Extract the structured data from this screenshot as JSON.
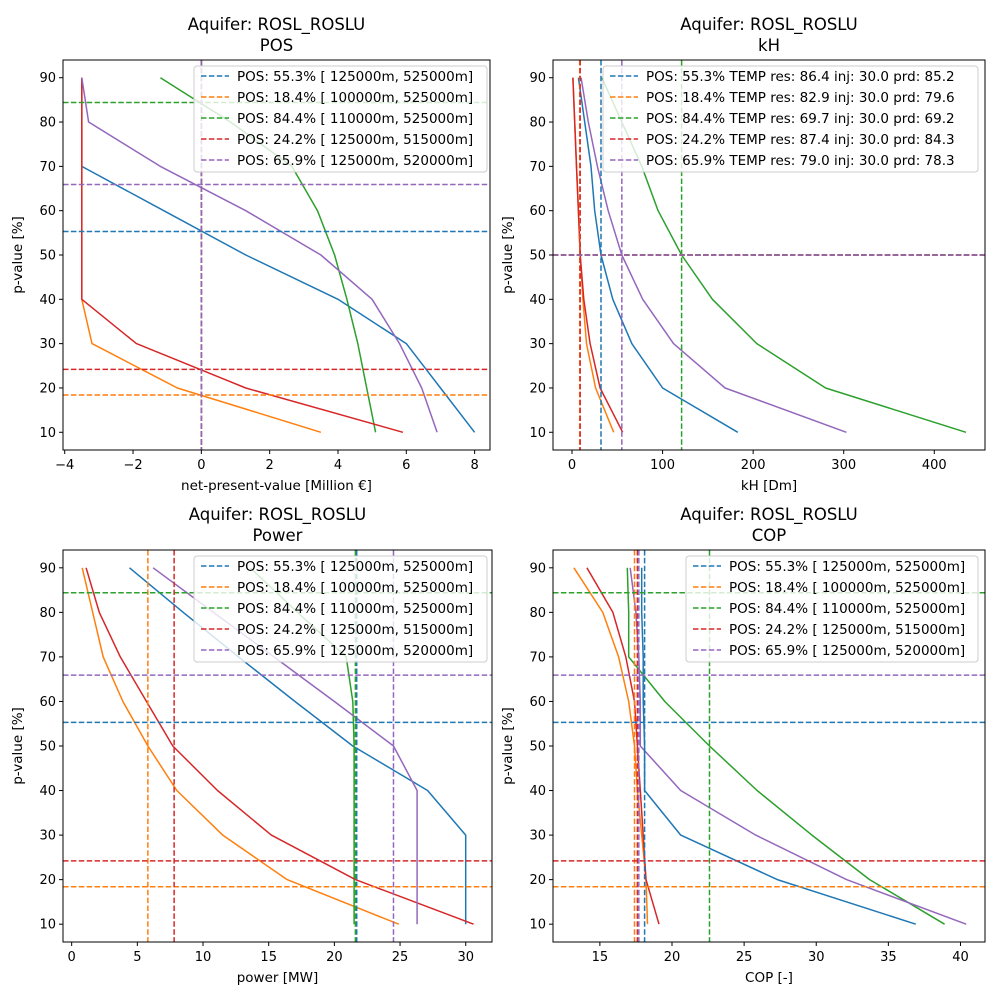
{
  "colors": {
    "blue": "#1f77b4",
    "orange": "#ff7f0e",
    "green": "#2ca02c",
    "red": "#d62728",
    "purple": "#9467bd"
  },
  "chart_data": [
    {
      "type": "line",
      "title": [
        "Aquifer: ROSL_ROSLU",
        "POS"
      ],
      "xlabel": "net-present-value [Million €]",
      "ylabel": "p-value [%]",
      "xlim": [
        -4.05,
        8.45
      ],
      "ylim": [
        6,
        94
      ],
      "xticks": [
        -4,
        -2,
        0,
        2,
        4,
        6,
        8
      ],
      "yticks": [
        10,
        20,
        30,
        40,
        50,
        60,
        70,
        80,
        90
      ],
      "grid": false,
      "legend_position": "top-right",
      "p_values": [
        10,
        20,
        30,
        40,
        50,
        60,
        70,
        80,
        90
      ],
      "series": [
        {
          "name": "POS: 55.3% [ 125000m, 525000m]",
          "color": "#1f77b4",
          "x": [
            8.0,
            7.0,
            6.0,
            4.0,
            1.3,
            -1.1,
            -3.5,
            -3.5,
            -3.5
          ],
          "hline": 55.3,
          "vline": 0
        },
        {
          "name": "POS: 18.4% [ 100000m, 525000m]",
          "color": "#ff7f0e",
          "x": [
            3.5,
            -0.7,
            -3.2,
            -3.5,
            -3.5,
            -3.5,
            -3.5,
            -3.5,
            -3.5
          ],
          "hline": 18.4,
          "vline": 0
        },
        {
          "name": "POS: 84.4% [ 110000m, 525000m]",
          "color": "#2ca02c",
          "x": [
            5.1,
            4.84,
            4.58,
            4.26,
            3.9,
            3.4,
            2.65,
            0.85,
            -1.2
          ],
          "hline": 84.4,
          "vline": 0
        },
        {
          "name": "POS: 24.2% [ 125000m, 515000m]",
          "color": "#d62728",
          "x": [
            5.9,
            1.3,
            -1.9,
            -3.5,
            -3.5,
            -3.5,
            -3.5,
            -3.5,
            -3.5
          ],
          "hline": 24.2,
          "vline": 0
        },
        {
          "name": "POS: 65.9% [ 125000m, 520000m]",
          "color": "#9467bd",
          "x": [
            6.9,
            6.45,
            5.8,
            5.0,
            3.5,
            1.3,
            -1.2,
            -3.3,
            -3.5
          ],
          "hline": 65.9,
          "vline": 0
        }
      ]
    },
    {
      "type": "line",
      "title": [
        "Aquifer: ROSL_ROSLU",
        "kH"
      ],
      "xlabel": "kH [Dm]",
      "ylabel": "p-value [%]",
      "xlim": [
        -21,
        456
      ],
      "ylim": [
        6,
        94
      ],
      "xticks": [
        0,
        100,
        200,
        300,
        400
      ],
      "yticks": [
        10,
        20,
        30,
        40,
        50,
        60,
        70,
        80,
        90
      ],
      "grid": false,
      "legend_position": "top-right",
      "p_values": [
        10,
        20,
        30,
        40,
        50,
        60,
        70,
        80,
        90
      ],
      "series": [
        {
          "name": "POS: 55.3%  TEMP res: 86.4 inj: 30.0 prd: 85.2",
          "color": "#1f77b4",
          "x": [
            183,
            100,
            66,
            45,
            32,
            25,
            21,
            14,
            7
          ],
          "hline": 50,
          "vline": 32
        },
        {
          "name": "POS: 18.4%  TEMP res: 82.9 inj: 30.0 prd: 79.6",
          "color": "#ff7f0e",
          "x": [
            46,
            26,
            16,
            12,
            9,
            7,
            5,
            3,
            1
          ],
          "hline": 50,
          "vline": 8.5
        },
        {
          "name": "POS: 84.4%  TEMP res: 69.7 inj: 30.0 prd: 69.2",
          "color": "#2ca02c",
          "x": [
            435,
            280,
            204,
            155,
            121,
            95,
            77,
            55,
            33
          ],
          "hline": 50,
          "vline": 121
        },
        {
          "name": "POS: 24.2%  TEMP res: 87.4 inj: 30.0 prd: 84.3",
          "color": "#d62728",
          "x": [
            56,
            31,
            20,
            13,
            9,
            7,
            5,
            3,
            1
          ],
          "hline": 50,
          "vline": 9
        },
        {
          "name": "POS: 65.9%  TEMP res: 79.0 inj: 30.0 prd: 78.3",
          "color": "#9467bd",
          "x": [
            303,
            169,
            112,
            78,
            55,
            40,
            28,
            18,
            10
          ],
          "hline": 50,
          "vline": 55
        }
      ]
    },
    {
      "type": "line",
      "title": [
        "Aquifer: ROSL_ROSLU",
        "Power"
      ],
      "xlabel": "power [MW]",
      "ylabel": "p-value [%]",
      "xlim": [
        -0.66,
        32.0
      ],
      "ylim": [
        6,
        94
      ],
      "xticks": [
        0,
        5,
        10,
        15,
        20,
        25,
        30
      ],
      "yticks": [
        10,
        20,
        30,
        40,
        50,
        60,
        70,
        80,
        90
      ],
      "grid": false,
      "legend_position": "top-right",
      "p_values": [
        10,
        20,
        30,
        40,
        50,
        60,
        70,
        80,
        90
      ],
      "series": [
        {
          "name": "POS: 55.3% [ 125000m, 525000m]",
          "color": "#1f77b4",
          "x": [
            30.0,
            30.0,
            30.0,
            27.1,
            21.4,
            17.0,
            12.7,
            8.5,
            4.4
          ],
          "hline": 55.3,
          "vline": 21.7
        },
        {
          "name": "POS: 18.4% [ 100000m, 525000m]",
          "color": "#ff7f0e",
          "x": [
            24.9,
            16.4,
            11.5,
            8.0,
            5.8,
            3.9,
            2.4,
            1.6,
            0.8
          ],
          "hline": 18.4,
          "vline": 5.8
        },
        {
          "name": "POS: 84.4% [ 110000m, 525000m]",
          "color": "#2ca02c",
          "x": [
            21.5,
            21.5,
            21.5,
            21.5,
            21.5,
            21.4,
            20.9,
            17.2,
            13.6
          ],
          "hline": 84.4,
          "vline": 21.6
        },
        {
          "name": "POS: 24.2% [ 125000m, 515000m]",
          "color": "#d62728",
          "x": [
            30.6,
            21.6,
            15.2,
            11.1,
            7.7,
            5.7,
            3.7,
            2.1,
            1.1
          ],
          "hline": 24.2,
          "vline": 7.8
        },
        {
          "name": "POS: 65.9% [ 125000m, 520000m]",
          "color": "#9467bd",
          "x": [
            26.3,
            26.3,
            26.3,
            26.3,
            24.5,
            20.0,
            15.4,
            10.8,
            6.2
          ],
          "hline": 65.9,
          "vline": 24.5
        }
      ]
    },
    {
      "type": "line",
      "title": [
        "Aquifer: ROSL_ROSLU",
        "COP"
      ],
      "xlabel": "COP [-]",
      "ylabel": "p-value [%]",
      "xlim": [
        11.75,
        41.7
      ],
      "ylim": [
        6,
        94
      ],
      "xticks": [
        15,
        20,
        25,
        30,
        35,
        40
      ],
      "yticks": [
        10,
        20,
        30,
        40,
        50,
        60,
        70,
        80,
        90
      ],
      "grid": false,
      "legend_position": "top-right",
      "p_values": [
        10,
        20,
        30,
        40,
        50,
        60,
        70,
        80,
        90
      ],
      "series": [
        {
          "name": "POS: 55.3% [ 125000m, 525000m]",
          "color": "#1f77b4",
          "x": [
            36.9,
            27.3,
            20.6,
            18.1,
            18.1,
            18.0,
            18.0,
            17.9,
            17.9
          ],
          "hline": 55.3,
          "vline": 18.1
        },
        {
          "name": "POS: 18.4% [ 100000m, 525000m]",
          "color": "#ff7f0e",
          "x": [
            18.3,
            18.2,
            17.9,
            17.6,
            17.4,
            17.0,
            16.3,
            15.2,
            13.2
          ],
          "hline": 18.4,
          "vline": 17.4
        },
        {
          "name": "POS: 84.4% [ 110000m, 525000m]",
          "color": "#2ca02c",
          "x": [
            38.9,
            33.7,
            29.7,
            25.9,
            22.6,
            19.5,
            17.0,
            17.0,
            16.9
          ],
          "hline": 84.4,
          "vline": 22.6
        },
        {
          "name": "POS: 24.2% [ 125000m, 515000m]",
          "color": "#d62728",
          "x": [
            19.1,
            18.2,
            18.0,
            17.8,
            17.6,
            17.4,
            16.8,
            15.9,
            14.1
          ],
          "hline": 24.2,
          "vline": 17.6
        },
        {
          "name": "POS: 65.9% [ 125000m, 520000m]",
          "color": "#9467bd",
          "x": [
            40.4,
            32.1,
            25.8,
            20.6,
            17.8,
            17.8,
            17.7,
            17.5,
            17.1
          ],
          "hline": 65.9,
          "vline": 17.7
        }
      ]
    }
  ]
}
